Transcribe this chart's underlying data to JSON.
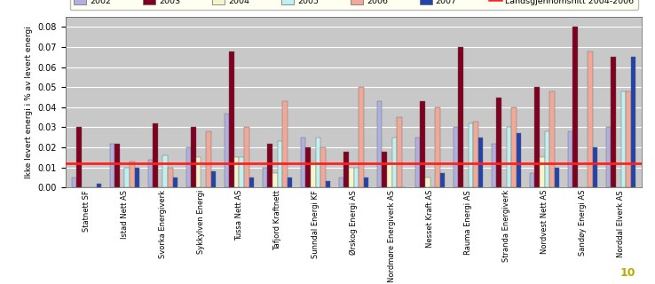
{
  "categories": [
    "Statnett SF",
    "Istad Nett AS",
    "Svorka Energiverk",
    "Sykkylven Energi",
    "Tussa Nett AS",
    "Tafjord Kraftnett",
    "Sunndal Energi KF",
    "Ørskog Energi AS",
    "Nordmøre Energiverk AS",
    "Nesset Kraft AS",
    "Rauma Energi AS",
    "Stranda Energiverk",
    "Nordvest Nett AS",
    "Sandøy Energi AS",
    "Norddal Elverk AS"
  ],
  "series": {
    "2002": [
      0.005,
      0.022,
      0.014,
      0.02,
      0.037,
      0.01,
      0.025,
      0.005,
      0.043,
      0.025,
      0.03,
      0.022,
      0.007,
      0.028,
      0.03
    ],
    "2003": [
      0.03,
      0.022,
      0.032,
      0.03,
      0.068,
      0.022,
      0.02,
      0.018,
      0.018,
      0.043,
      0.07,
      0.045,
      0.05,
      0.08,
      0.065
    ],
    "2004": [
      0.0,
      0.0,
      0.0,
      0.015,
      0.015,
      0.007,
      0.013,
      0.01,
      0.012,
      0.005,
      0.0,
      0.0,
      0.015,
      0.0,
      0.0
    ],
    "2005": [
      0.0,
      0.01,
      0.016,
      0.0,
      0.015,
      0.023,
      0.025,
      0.01,
      0.025,
      0.0,
      0.032,
      0.03,
      0.028,
      0.0,
      0.048
    ],
    "2006": [
      0.0,
      0.013,
      0.01,
      0.028,
      0.03,
      0.043,
      0.02,
      0.05,
      0.035,
      0.04,
      0.033,
      0.04,
      0.048,
      0.068,
      0.048
    ],
    "2007": [
      0.002,
      0.01,
      0.005,
      0.008,
      0.005,
      0.005,
      0.003,
      0.005,
      0.0,
      0.007,
      0.025,
      0.027,
      0.01,
      0.02,
      0.065
    ]
  },
  "landsgjennomsnitt": 0.012,
  "colors": {
    "2002": "#b0b0e0",
    "2003": "#800020",
    "2004": "#f5f5cc",
    "2005": "#c0f0f0",
    "2006": "#f0a898",
    "2007": "#2244aa"
  },
  "ylabel": "Ikke levert energi i % av levert energi",
  "ylim": [
    0,
    0.085
  ],
  "yticks": [
    0.0,
    0.01,
    0.02,
    0.03,
    0.04,
    0.05,
    0.06,
    0.07,
    0.08
  ],
  "background_color": "#c8c8c8",
  "grid_color": "#ffffff",
  "legend_bg": "#ffffee",
  "legend_border": "#999900",
  "ref_line_color": "#ff2020",
  "ref_line_label": "Landsgjennomsnitt 2004-2006",
  "page_number": "10"
}
